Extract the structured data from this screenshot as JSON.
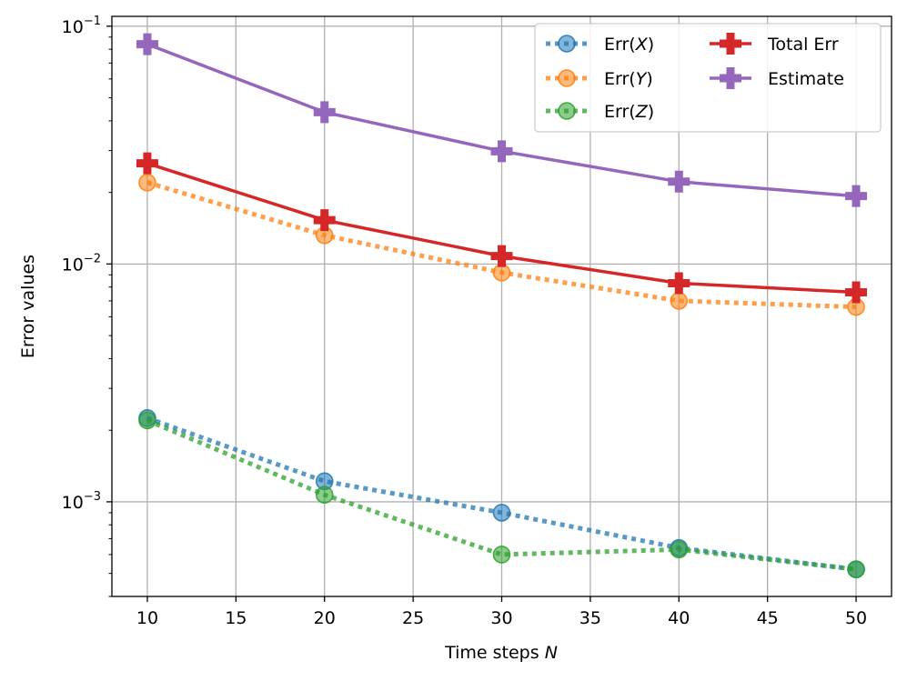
{
  "chart_data": {
    "type": "line",
    "title": "",
    "xlabel": "Time steps",
    "xlabel_var": "N",
    "ylabel": "Error values",
    "yscale": "log",
    "x": [
      10,
      20,
      30,
      40,
      50
    ],
    "xlim": [
      8,
      52
    ],
    "ylim": [
      0.0004,
      0.11
    ],
    "grid": true,
    "legend_position": "top-right",
    "xticks": [
      {
        "value": 10,
        "label": "10"
      },
      {
        "value": 15,
        "label": "15"
      },
      {
        "value": 20,
        "label": "20"
      },
      {
        "value": 25,
        "label": "25"
      },
      {
        "value": 30,
        "label": "30"
      },
      {
        "value": 35,
        "label": "35"
      },
      {
        "value": 40,
        "label": "40"
      },
      {
        "value": 45,
        "label": "45"
      },
      {
        "value": 50,
        "label": "50"
      }
    ],
    "yticks": [
      {
        "value": 0.1,
        "base": "10",
        "exp": "−1"
      },
      {
        "value": 0.01,
        "base": "10",
        "exp": "−2"
      },
      {
        "value": 0.001,
        "base": "10",
        "exp": "−3"
      }
    ],
    "series": [
      {
        "id": "err-x",
        "name": "Err(",
        "var": "X",
        "suffix": ")",
        "color": "#1f77b4",
        "style": "dotted",
        "marker": "circle",
        "values": [
          0.00225,
          0.00122,
          0.0009,
          0.00064,
          0.00052
        ]
      },
      {
        "id": "err-y",
        "name": "Err(",
        "var": "Y",
        "suffix": ")",
        "color": "#ff7f0e",
        "style": "dotted",
        "marker": "circle",
        "values": [
          0.022,
          0.0132,
          0.0092,
          0.007,
          0.0066
        ]
      },
      {
        "id": "err-z",
        "name": "Err(",
        "var": "Z",
        "suffix": ")",
        "color": "#2ca02c",
        "style": "dotted",
        "marker": "circle",
        "values": [
          0.0022,
          0.00107,
          0.0006,
          0.00063,
          0.00052
        ]
      },
      {
        "id": "total-err",
        "name": "Total Err",
        "var": "",
        "suffix": "",
        "color": "#d62728",
        "style": "solid",
        "marker": "plus",
        "values": [
          0.0265,
          0.0153,
          0.0108,
          0.0083,
          0.0076
        ]
      },
      {
        "id": "estimate",
        "name": "Estimate",
        "var": "",
        "suffix": "",
        "color": "#9467bd",
        "style": "solid",
        "marker": "plus",
        "values": [
          0.084,
          0.0435,
          0.0298,
          0.0222,
          0.0193
        ]
      }
    ]
  }
}
